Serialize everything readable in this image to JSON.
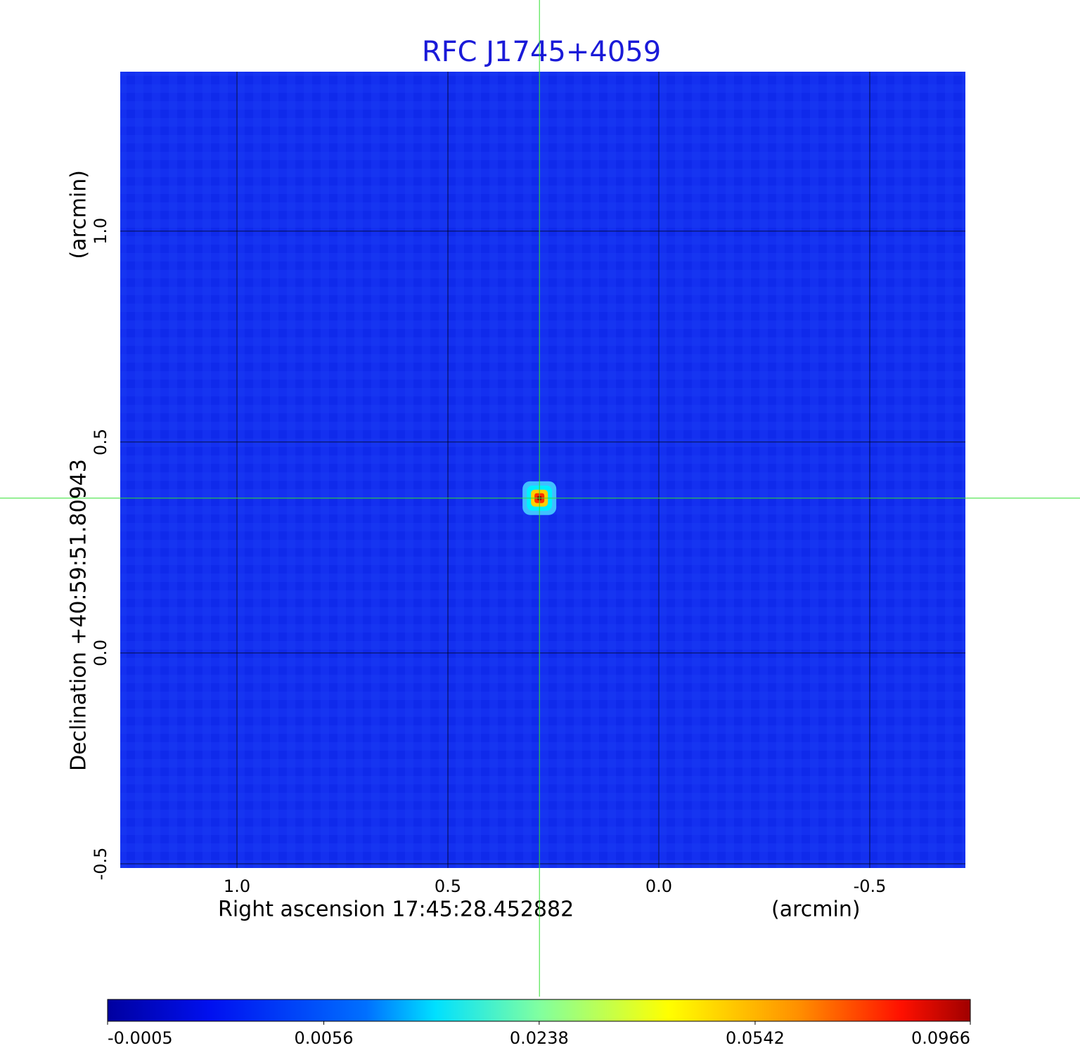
{
  "chart_data": {
    "type": "image",
    "title": "RFC J1745+4059",
    "xlabel": "Right ascension  17:45:28.452882",
    "xunit": "(arcmin)",
    "ylabel": "Declination  +40:59:51.80943",
    "yunit": "(arcmin)",
    "xlim": [
      1.2767,
      -0.7267
    ],
    "ylim": [
      -0.51,
      1.378
    ],
    "xticks": [
      {
        "value": 1.0,
        "label": "1.0"
      },
      {
        "value": 0.5,
        "label": "0.5"
      },
      {
        "value": 0.0,
        "label": "0.0"
      },
      {
        "value": -0.5,
        "label": "-0.5"
      }
    ],
    "yticks": [
      {
        "value": -0.5,
        "label": "-0.5"
      },
      {
        "value": 0.0,
        "label": "0.0"
      },
      {
        "value": 0.5,
        "label": "0.5"
      },
      {
        "value": 1.0,
        "label": "1.0"
      }
    ],
    "grid": true,
    "source": {
      "x": 0.283,
      "y": 0.367
    },
    "clim": [
      -0.0005,
      0.0966
    ],
    "cscale": "sqrt",
    "cticks": [
      -0.0005,
      0.0056,
      0.0238,
      0.0542,
      0.0966
    ]
  }
}
